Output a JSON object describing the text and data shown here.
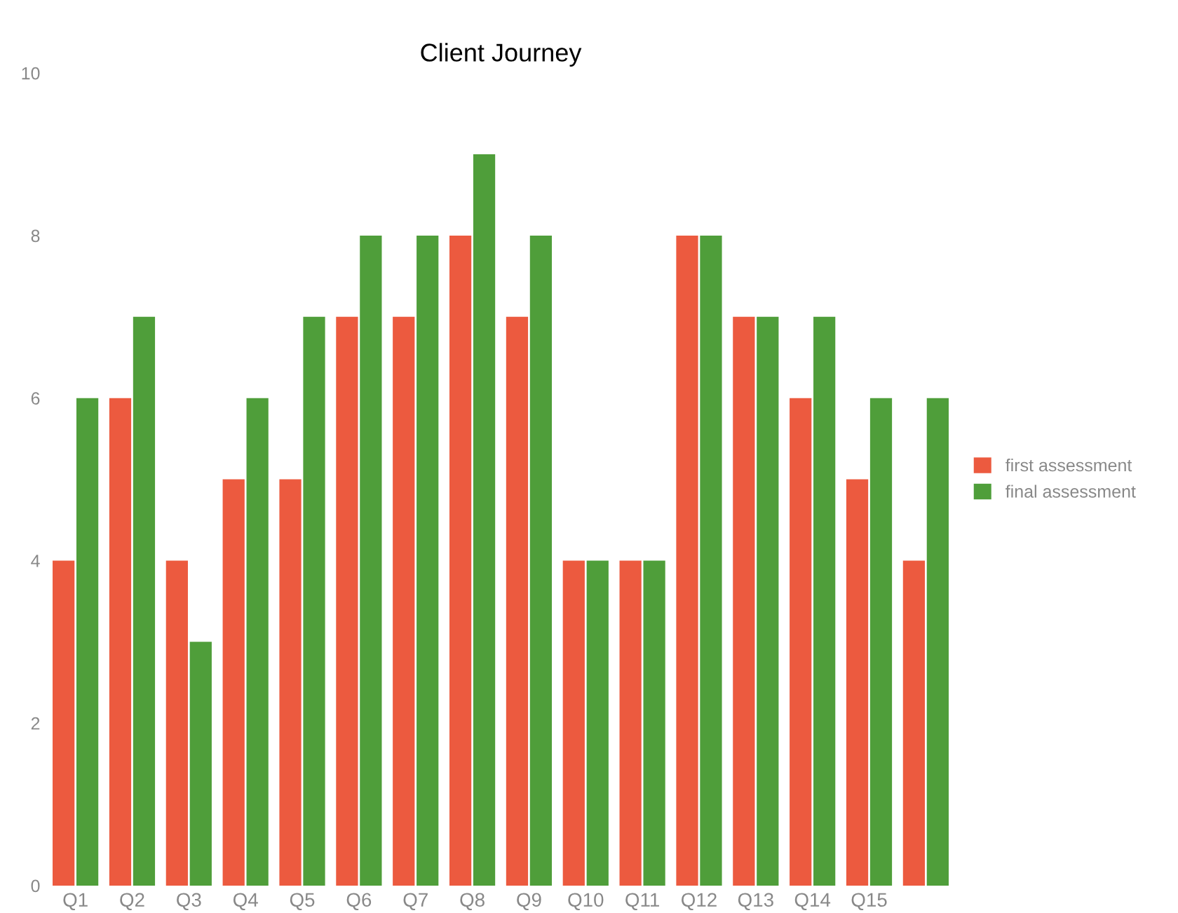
{
  "chart_data": {
    "type": "bar",
    "title": "Client Journey",
    "categories": [
      "Q1",
      "Q2",
      "Q3",
      "Q4",
      "Q5",
      "Q6",
      "Q7",
      "Q8",
      "Q9",
      "Q10",
      "Q11",
      "Q12",
      "Q13",
      "Q14",
      "Q15",
      null
    ],
    "series": [
      {
        "name": "first assessment",
        "color": "#ec5a3f",
        "values": [
          4,
          6,
          4,
          5,
          5,
          7,
          7,
          8,
          7,
          4,
          4,
          8,
          7,
          6,
          5,
          4
        ]
      },
      {
        "name": "final assessment",
        "color": "#4f9e3a",
        "values": [
          6,
          7,
          3,
          6,
          7,
          8,
          8,
          9,
          8,
          4,
          4,
          8,
          7,
          7,
          6,
          6
        ]
      }
    ],
    "ylim": [
      0,
      10
    ],
    "yticks": [
      0,
      2,
      4,
      6,
      8,
      10
    ],
    "grid": false,
    "legend": "right"
  }
}
